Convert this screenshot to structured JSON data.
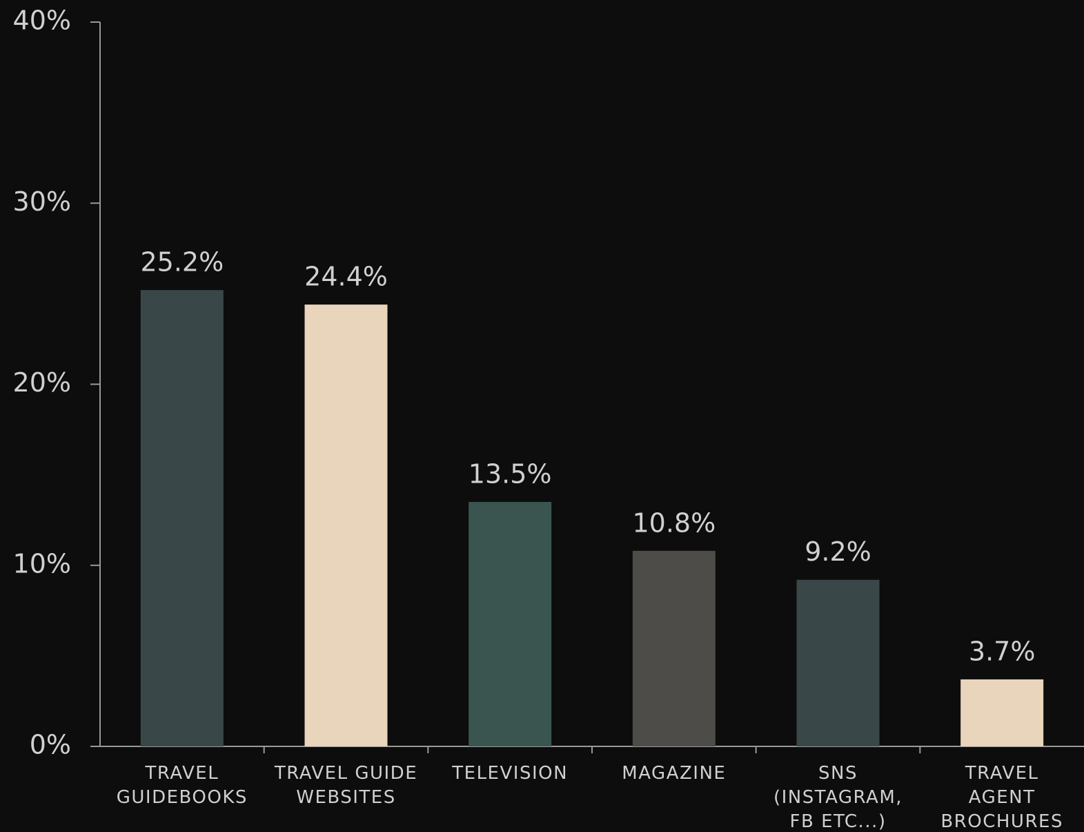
{
  "chart_data": {
    "type": "bar",
    "categories": [
      "TRAVEL\nGUIDEBOOKS",
      "TRAVEL GUIDE\nWEBSITES",
      "TELEVISION",
      "MAGAZINE",
      "SNS\n(INSTAGRAM,\nFB ETC...)",
      "TRAVEL\nAGENT\nBROCHURES"
    ],
    "values": [
      25.2,
      24.4,
      13.5,
      10.8,
      9.2,
      3.7
    ],
    "value_labels": [
      "25.2%",
      "24.4%",
      "13.5%",
      "10.8%",
      "9.2%",
      "3.7%"
    ],
    "colors": [
      "#3a4748",
      "#e9d4bc",
      "#3a5550",
      "#4d4c48",
      "#3a4748",
      "#e9d4bc"
    ],
    "ylim": [
      0,
      40
    ],
    "yticks": [
      {
        "value": 0,
        "label": "0%"
      },
      {
        "value": 10,
        "label": "10%"
      },
      {
        "value": 20,
        "label": "20%"
      },
      {
        "value": 30,
        "label": "30%"
      },
      {
        "value": 40,
        "label": "40%"
      }
    ],
    "grid": false
  }
}
